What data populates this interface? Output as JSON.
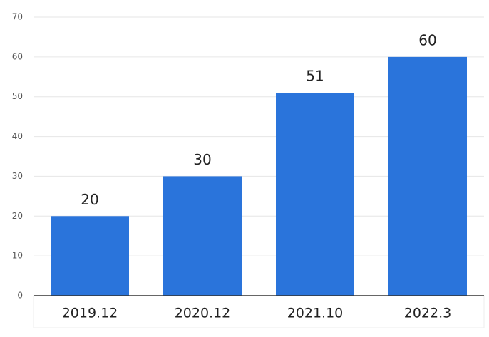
{
  "chart_data": {
    "type": "bar",
    "categories": [
      "2019.12",
      "2020.12",
      "2021.10",
      "2022.3"
    ],
    "values": [
      20,
      30,
      51,
      60
    ],
    "color": "#2a74db",
    "ylim": [
      0,
      70
    ],
    "yticks": [
      0,
      10,
      20,
      30,
      40,
      50,
      60,
      70
    ],
    "grid": true
  }
}
